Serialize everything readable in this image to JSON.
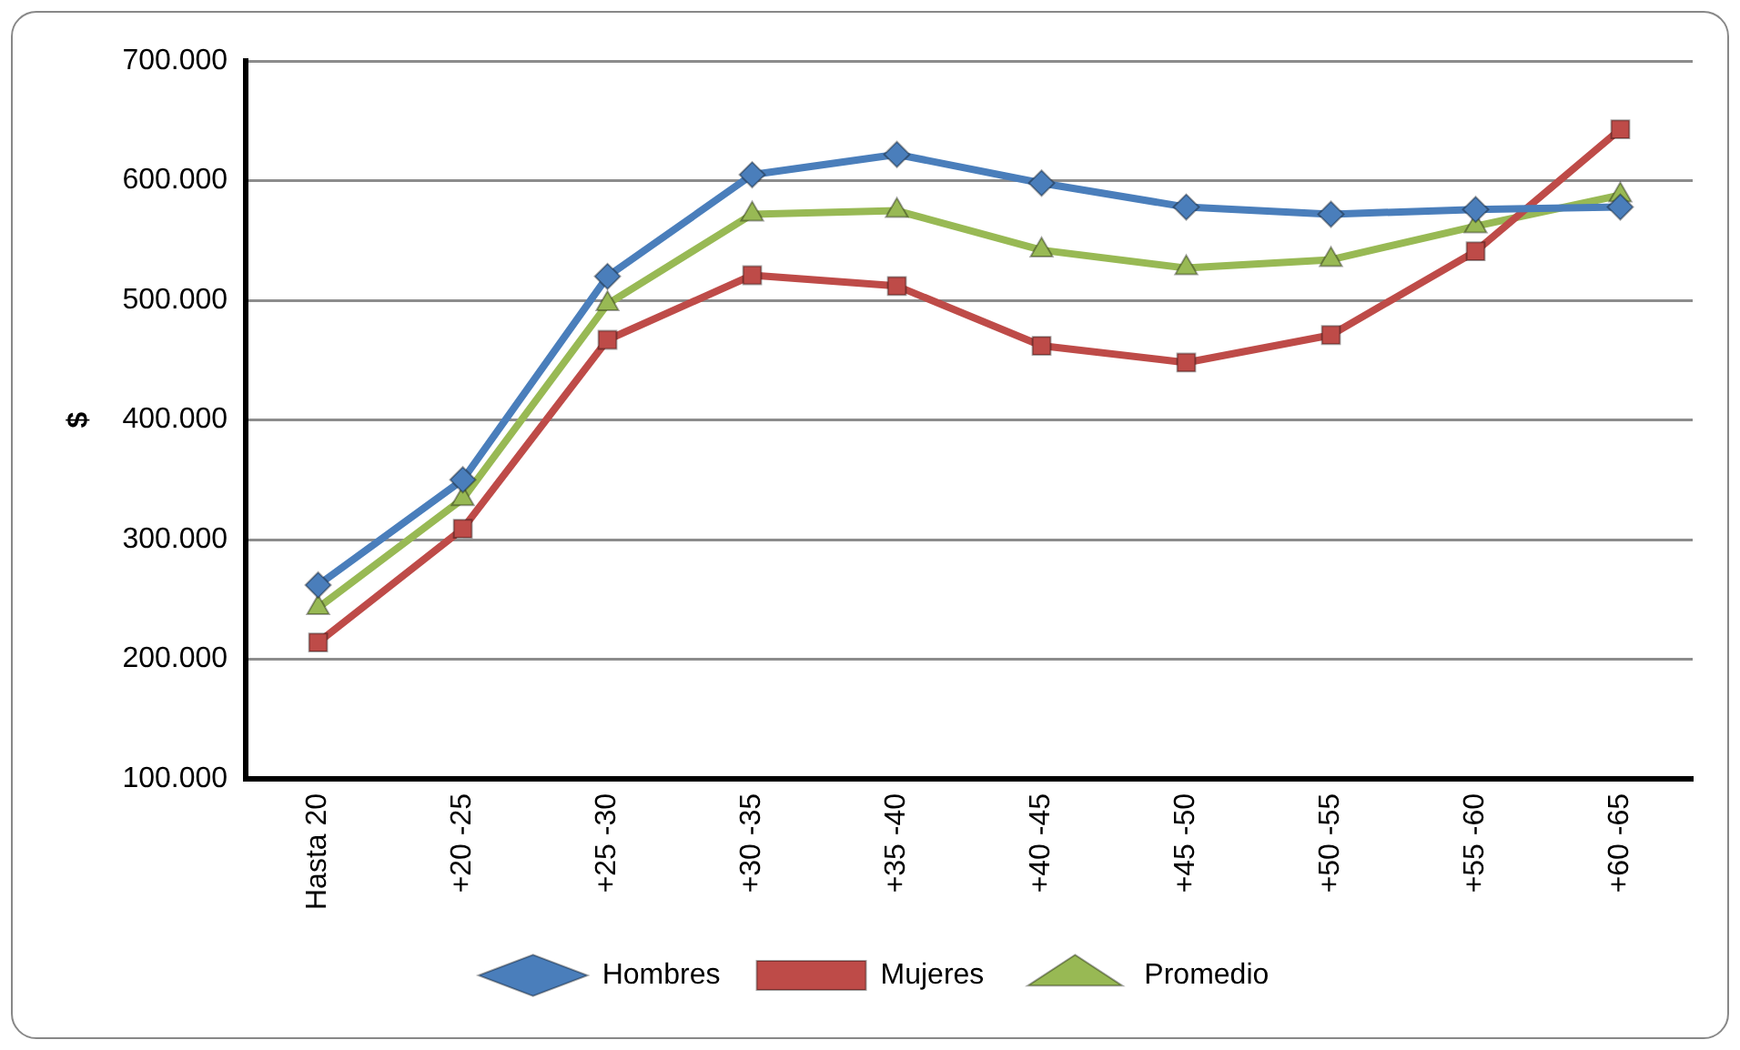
{
  "chart_data": {
    "type": "line",
    "ylabel": "$",
    "categories": [
      "Hasta 20",
      "+20 -25",
      "+25 -30",
      "+30 -35",
      "+35 -40",
      "+40 -45",
      "+45 -50",
      "+50 -55",
      "+55 -60",
      "+60 -65"
    ],
    "series": [
      {
        "name": "Hombres",
        "color": "#4a7ebb",
        "marker": "diamond",
        "values": [
          262000,
          350000,
          520000,
          605000,
          622000,
          598000,
          578000,
          572000,
          576000,
          578000
        ]
      },
      {
        "name": "Mujeres",
        "color": "#be4b48",
        "marker": "square",
        "values": [
          214000,
          309000,
          467000,
          521000,
          512000,
          462000,
          448000,
          471000,
          541000,
          643000
        ]
      },
      {
        "name": "Promedio",
        "color": "#98b954",
        "marker": "triangle",
        "values": [
          243000,
          334000,
          497000,
          572000,
          575000,
          542000,
          527000,
          534000,
          562000,
          588000
        ]
      }
    ],
    "ylim": [
      100000,
      700000
    ],
    "yticks": [
      {
        "value": 100000,
        "label": "100.000"
      },
      {
        "value": 200000,
        "label": "200.000"
      },
      {
        "value": 300000,
        "label": "300.000"
      },
      {
        "value": 400000,
        "label": "400.000"
      },
      {
        "value": 500000,
        "label": "500.000"
      },
      {
        "value": 600000,
        "label": "600.000"
      },
      {
        "value": 700000,
        "label": "700.000"
      }
    ],
    "grid": "y",
    "legend": "bottom",
    "line_style": "solid"
  }
}
